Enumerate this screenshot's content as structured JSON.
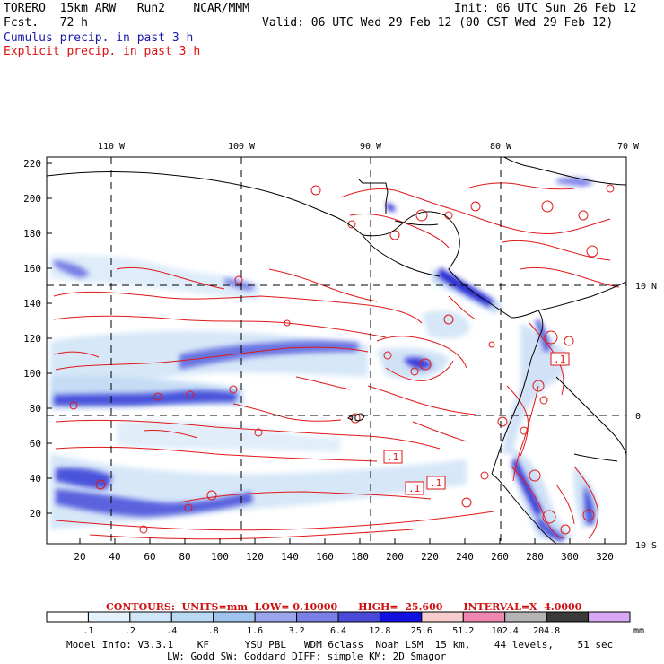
{
  "header": {
    "title": "TORERO  15km ARW   Run2    NCAR/MMM",
    "init": "Init: 06 UTC Sun 26 Feb 12",
    "fcst": "Fcst.   72 h",
    "valid": "Valid: 06 UTC Wed 29 Feb 12 (00 CST Wed 29 Feb 12)",
    "line_cumulus": "Cumulus precip. in past 3 h",
    "line_explicit": "Explicit precip. in past 3 h"
  },
  "map": {
    "lon_labels": [
      "110 W",
      "100 W",
      "90 W",
      "80 W",
      "70 W"
    ],
    "lat_labels": [
      "10 N",
      "0",
      "10 S"
    ],
    "y_ticks": [
      "220",
      "200",
      "180",
      "160",
      "140",
      "120",
      "100",
      "80",
      "60",
      "40",
      "20"
    ],
    "x_ticks": [
      "20",
      "40",
      "60",
      "80",
      "100",
      "120",
      "140",
      "160",
      "180",
      "200",
      "220",
      "240",
      "260",
      "280",
      "300",
      "320"
    ],
    "contour_labels": [
      ".1",
      ".1",
      ".1",
      ".1"
    ]
  },
  "contours_line": "CONTOURS:  UNITS=mm  LOW= 0.10000      HIGH=  25.600      INTERVAL=X  4.0000",
  "colorbar": {
    "labels": [
      ".1",
      ".2",
      ".4",
      ".8",
      "1.6",
      "3.2",
      "6.4",
      "12.8",
      "25.6",
      "51.2",
      "102.4",
      "204.8"
    ],
    "unit": "mm",
    "colors": [
      "#ffffff",
      "#e6f2fb",
      "#cfe6f8",
      "#b8d8f4",
      "#a0c4ee",
      "#9aa6ec",
      "#7a80e6",
      "#4a4ad8",
      "#1010e0",
      "#f6cccc",
      "#ee88b0",
      "#b4b4b4",
      "#3a3a3a",
      "#d8a8f4"
    ]
  },
  "model_info": {
    "line1": "Model Info: V3.3.1    KF      YSU PBL   WDM 6class  Noah LSM  15 km,    44 levels,    51 sec",
    "line2": "LW: Godd SW: Goddard DIFF: simple KM: 2D Smagor"
  }
}
